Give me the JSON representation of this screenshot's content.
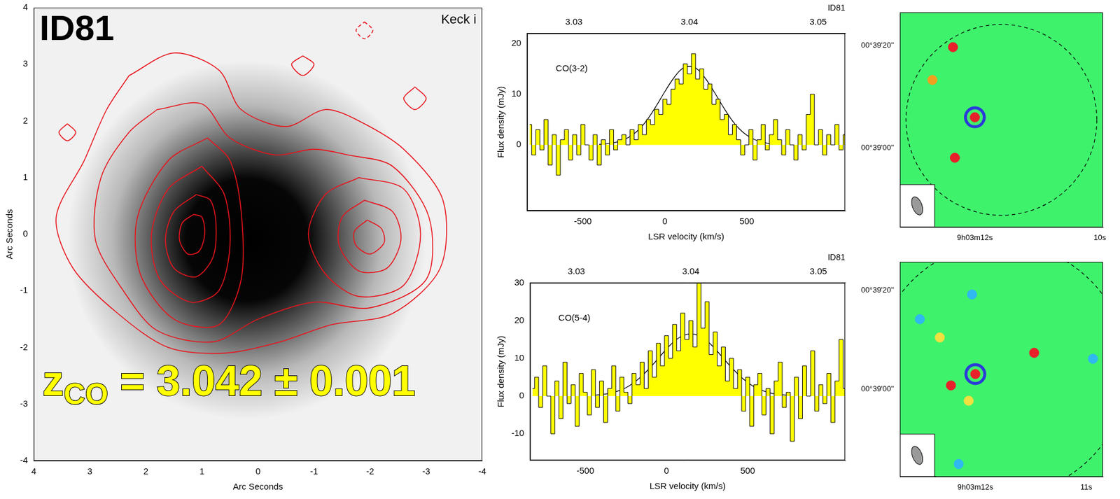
{
  "chart_data": [
    {
      "type": "contour",
      "title": "ID81",
      "subtitle": "Keck i",
      "x_label": "Arc Seconds",
      "y_label": "Arc Seconds",
      "xlim": [
        4,
        -4
      ],
      "ylim": [
        -4,
        4
      ],
      "xticks": [
        4,
        3,
        2,
        1,
        0,
        -1,
        -2,
        -3,
        -4
      ],
      "yticks": [
        -4,
        -3,
        -2,
        -1,
        0,
        1,
        2,
        3,
        4
      ],
      "grid": false,
      "image_peak": [
        0.2,
        -0.1
      ],
      "image_radius": 3.2,
      "annotation": {
        "text": "z",
        "subscript": "CO",
        "after": " = 3.042 ± 0.001"
      },
      "series": [
        {
          "type": "line",
          "color": "#e8141c",
          "line_style": "solid",
          "x": [
            1.15,
            1.35,
            1.4,
            1.25,
            1.05,
            0.95,
            1.0,
            1.15
          ],
          "y": [
            0.35,
            0.2,
            -0.1,
            -0.35,
            -0.3,
            0,
            0.3,
            0.35
          ]
        },
        {
          "type": "line",
          "color": "#e8141c",
          "line_style": "solid",
          "x": [
            1.1,
            1.5,
            1.65,
            1.5,
            1.1,
            0.8,
            0.75,
            0.85,
            1.1
          ],
          "y": [
            0.7,
            0.4,
            -0.1,
            -0.6,
            -0.75,
            -0.4,
            0.2,
            0.6,
            0.7
          ]
        },
        {
          "type": "line",
          "color": "#e8141c",
          "line_style": "solid",
          "x": [
            1.0,
            1.6,
            1.9,
            1.75,
            1.2,
            0.7,
            0.5,
            0.6,
            1.0
          ],
          "y": [
            1.2,
            0.8,
            0.0,
            -0.8,
            -1.2,
            -1.0,
            -0.2,
            0.7,
            1.2
          ]
        },
        {
          "type": "line",
          "color": "#e8141c",
          "line_style": "solid",
          "x": [
            0.9,
            1.6,
            2.15,
            2.1,
            1.5,
            0.7,
            0.3,
            0.3,
            0.5,
            0.9
          ],
          "y": [
            1.7,
            1.3,
            0.3,
            -0.7,
            -1.5,
            -1.6,
            -0.8,
            0.4,
            1.3,
            1.7
          ]
        },
        {
          "type": "line",
          "color": "#e8141c",
          "line_style": "solid",
          "x": [
            -1.95,
            -2.2,
            -2.25,
            -2.0,
            -1.75,
            -1.72,
            -1.95
          ],
          "y": [
            0.25,
            0.1,
            -0.15,
            -0.35,
            -0.2,
            0.05,
            0.25
          ]
        },
        {
          "type": "line",
          "color": "#e8141c",
          "line_style": "solid",
          "x": [
            -1.9,
            -2.4,
            -2.55,
            -2.3,
            -1.8,
            -1.45,
            -1.5,
            -1.9
          ],
          "y": [
            0.6,
            0.4,
            -0.1,
            -0.6,
            -0.65,
            -0.2,
            0.3,
            0.6
          ]
        },
        {
          "type": "line",
          "color": "#e8141c",
          "line_style": "solid",
          "x": [
            -1.8,
            -2.6,
            -2.9,
            -2.6,
            -1.8,
            -1.2,
            -0.9,
            -1.2,
            -1.8
          ],
          "y": [
            1.0,
            0.8,
            0.0,
            -0.9,
            -1.1,
            -0.7,
            0.0,
            0.7,
            1.0
          ]
        },
        {
          "type": "line",
          "color": "#e8141c",
          "line_style": "solid",
          "x": [
            1.8,
            1.0,
            0.5,
            -0.3,
            -1.0,
            -1.6,
            -2.4,
            -3.05,
            -3.0,
            -2.0,
            -1.0,
            0.0,
            0.8,
            1.8,
            2.4,
            2.9,
            2.8,
            2.3,
            1.8
          ],
          "y": [
            2.2,
            2.3,
            1.7,
            1.4,
            1.5,
            1.4,
            1.2,
            0.3,
            -0.8,
            -1.3,
            -1.2,
            -1.5,
            -1.9,
            -1.7,
            -1.0,
            -0.1,
            1.0,
            1.8,
            2.2
          ]
        },
        {
          "type": "line",
          "color": "#e8141c",
          "line_style": "solid",
          "x": [
            2.3,
            1.5,
            0.7,
            0.3,
            -0.5,
            -1.2,
            -1.8,
            -2.6,
            -3.3,
            -3.25,
            -2.4,
            -1.3,
            -0.4,
            0.6,
            1.6,
            2.5,
            3.3,
            3.6,
            3.1,
            2.7,
            2.3
          ],
          "y": [
            2.8,
            3.2,
            2.9,
            2.2,
            1.9,
            2.2,
            2.0,
            1.5,
            0.6,
            -0.6,
            -1.4,
            -1.6,
            -1.9,
            -2.1,
            -2.0,
            -1.4,
            -0.6,
            0.3,
            1.3,
            2.2,
            2.8
          ]
        },
        {
          "type": "line",
          "color": "#e8141c",
          "line_style": "solid",
          "x": [
            -0.8,
            -1.0,
            -0.8,
            -0.6,
            -0.8
          ],
          "y": [
            3.15,
            3.0,
            2.8,
            3.0,
            3.15
          ]
        },
        {
          "type": "line",
          "color": "#e8141c",
          "line_style": "solid",
          "x": [
            -2.8,
            -3.0,
            -2.8,
            -2.6,
            -2.8
          ],
          "y": [
            2.6,
            2.4,
            2.2,
            2.4,
            2.6
          ]
        },
        {
          "type": "line",
          "color": "#e8141c",
          "line_style": "solid",
          "x": [
            3.4,
            3.25,
            3.4,
            3.55,
            3.4
          ],
          "y": [
            1.95,
            1.8,
            1.65,
            1.8,
            1.95
          ]
        },
        {
          "type": "line",
          "color": "#e8141c",
          "line_style": "dashed",
          "x": [
            -1.9,
            -2.05,
            -1.9,
            -1.75,
            -1.9
          ],
          "y": [
            3.75,
            3.6,
            3.45,
            3.6,
            3.75
          ]
        }
      ]
    },
    {
      "type": "line",
      "title": "ID81",
      "annotation": "CO(3-2)",
      "x_label": "LSR velocity (km/s)",
      "y_label": "Flux density (mJy)",
      "xlim": [
        -840,
        1100
      ],
      "ylim": [
        -13,
        22
      ],
      "xticks": [
        -500,
        0,
        500
      ],
      "yticks": [
        0,
        10,
        20
      ],
      "x2lim": [
        -840,
        1100
      ],
      "x2ticks": [
        {
          "value": -555,
          "label": "3.03"
        },
        {
          "value": 150,
          "label": "3.04"
        },
        {
          "value": 935,
          "label": "3.05"
        }
      ],
      "grid": false,
      "series": [
        {
          "type": "step",
          "color": "#ffff00",
          "line_style": "solid",
          "x": [
            -825,
            -800,
            -775,
            -750,
            -725,
            -700,
            -675,
            -650,
            -625,
            -600,
            -575,
            -550,
            -525,
            -500,
            -475,
            -450,
            -425,
            -400,
            -375,
            -350,
            -325,
            -300,
            -275,
            -250,
            -225,
            -200,
            -175,
            -150,
            -125,
            -100,
            -75,
            -50,
            -25,
            0,
            25,
            50,
            75,
            100,
            125,
            150,
            175,
            200,
            225,
            250,
            275,
            300,
            325,
            350,
            375,
            400,
            425,
            450,
            475,
            500,
            525,
            550,
            575,
            600,
            625,
            650,
            675,
            700,
            725,
            750,
            775,
            800,
            825,
            850,
            875,
            900,
            925,
            950,
            975,
            1000,
            1025,
            1050,
            1075,
            1100
          ],
          "values": [
            4,
            -2,
            3,
            -1,
            5,
            -4,
            2,
            -6,
            1,
            3,
            -3,
            2,
            -2,
            4,
            0,
            -3,
            2,
            -4,
            1,
            -2,
            3,
            -1,
            1,
            2,
            0,
            3,
            1,
            4,
            2,
            5,
            4,
            7,
            6,
            9,
            8,
            11,
            13,
            12,
            16,
            14,
            18,
            13,
            15,
            11,
            12,
            8,
            9,
            5,
            6,
            2,
            4,
            1,
            -2,
            0,
            3,
            -3,
            1,
            4,
            -1,
            2,
            5,
            1,
            -2,
            3,
            0,
            -3,
            2,
            -1,
            6,
            10,
            0,
            3,
            -2,
            2,
            0,
            4,
            -1,
            2
          ]
        },
        {
          "type": "line",
          "color": "#000000",
          "line_style": "solid",
          "x": [
            -400,
            -350,
            -300,
            -250,
            -200,
            -150,
            -100,
            -50,
            0,
            50,
            100,
            150,
            200,
            250,
            300,
            350,
            400,
            450,
            500,
            550,
            600,
            650,
            700
          ],
          "values": [
            0.1,
            0.2,
            0.5,
            1.0,
            1.9,
            3.3,
            5.3,
            7.8,
            10.5,
            13.0,
            14.9,
            15.5,
            14.9,
            13.0,
            10.5,
            7.8,
            5.3,
            3.3,
            1.9,
            1.0,
            0.5,
            0.2,
            0.1
          ]
        }
      ]
    },
    {
      "type": "line",
      "title": "ID81",
      "annotation": "CO(5-4)",
      "x_label": "LSR velocity (km/s)",
      "y_label": "Flux density (mJy)",
      "xlim": [
        -840,
        1100
      ],
      "ylim": [
        -17,
        30
      ],
      "xticks": [
        -500,
        0,
        500
      ],
      "yticks": [
        -10,
        0,
        10,
        20,
        30
      ],
      "x2lim": [
        -840,
        1100
      ],
      "x2ticks": [
        {
          "value": -555,
          "label": "3.03"
        },
        {
          "value": 150,
          "label": "3.04"
        },
        {
          "value": 935,
          "label": "3.05"
        }
      ],
      "grid": false,
      "series": [
        {
          "type": "step",
          "color": "#ffff00",
          "line_style": "solid",
          "x": [
            -825,
            -800,
            -775,
            -750,
            -725,
            -700,
            -675,
            -650,
            -625,
            -600,
            -575,
            -550,
            -525,
            -500,
            -475,
            -450,
            -425,
            -400,
            -375,
            -350,
            -325,
            -300,
            -275,
            -250,
            -225,
            -200,
            -175,
            -150,
            -125,
            -100,
            -75,
            -50,
            -25,
            0,
            25,
            50,
            75,
            100,
            125,
            150,
            175,
            200,
            225,
            250,
            275,
            300,
            325,
            350,
            375,
            400,
            425,
            450,
            475,
            500,
            525,
            550,
            575,
            600,
            625,
            650,
            675,
            700,
            725,
            750,
            775,
            800,
            825,
            850,
            875,
            900,
            925,
            950,
            975,
            1000,
            1025,
            1050,
            1075,
            1100
          ],
          "values": [
            2,
            5,
            -3,
            8,
            0,
            -10,
            4,
            -6,
            9,
            -2,
            3,
            -8,
            6,
            1,
            -5,
            7,
            -3,
            4,
            -7,
            2,
            8,
            -4,
            5,
            1,
            -2,
            6,
            3,
            9,
            2,
            12,
            5,
            14,
            8,
            16,
            10,
            19,
            12,
            22,
            15,
            20,
            13,
            30,
            18,
            25,
            11,
            17,
            8,
            13,
            4,
            10,
            2,
            7,
            -4,
            5,
            -8,
            3,
            6,
            -5,
            2,
            -10,
            4,
            9,
            -3,
            1,
            -12,
            5,
            -6,
            8,
            0,
            12,
            -4,
            3,
            -2,
            6,
            -7,
            4,
            15,
            2
          ]
        },
        {
          "type": "line",
          "color": "#000000",
          "line_style": "solid",
          "x": [
            -450,
            -400,
            -350,
            -300,
            -250,
            -200,
            -150,
            -100,
            -50,
            0,
            50,
            100,
            150,
            200,
            250,
            300,
            350,
            400,
            450,
            500,
            550,
            600,
            650,
            700,
            750
          ],
          "values": [
            0.2,
            0.4,
            0.7,
            1.3,
            2.2,
            3.6,
            5.4,
            7.6,
            10.0,
            12.5,
            14.6,
            16.0,
            16.5,
            16.0,
            14.6,
            12.5,
            10.0,
            7.6,
            5.4,
            3.6,
            2.2,
            1.3,
            0.7,
            0.4,
            0.2
          ]
        }
      ]
    },
    {
      "type": "scatter",
      "xlim": [
        13.2,
        9.95
      ],
      "ylim": [
        -15.5,
        26.5
      ],
      "xticks": [
        {
          "value": 12,
          "label": "9h03m12s"
        },
        {
          "value": 10,
          "label": "10s"
        }
      ],
      "yticks": [
        {
          "value": 0,
          "label": "00°39'00''"
        },
        {
          "value": 20,
          "label": "00°39'20''"
        }
      ],
      "grid": false,
      "series": [
        {
          "color": "#2b3bd8",
          "marker": "ring",
          "x": [
            12.0
          ],
          "y": [
            6.0
          ]
        },
        {
          "color": "#e8202a",
          "marker": "circle",
          "x": [
            12.0,
            12.35,
            12.32
          ],
          "y": [
            6.0,
            19.7,
            -1.9
          ]
        },
        {
          "color": "#f0a020",
          "marker": "circle",
          "x": [
            12.68
          ],
          "y": [
            13.3
          ]
        }
      ]
    },
    {
      "type": "scatter",
      "xlim": [
        12.68,
        10.85
      ],
      "ylim": [
        -17.7,
        25.8
      ],
      "xticks": [
        {
          "value": 12,
          "label": "9h03m12s"
        },
        {
          "value": 11,
          "label": "11s"
        }
      ],
      "yticks": [
        {
          "value": 0,
          "label": "00°39'00''"
        },
        {
          "value": 20,
          "label": "00°39'20''"
        }
      ],
      "grid": false,
      "series": [
        {
          "color": "#2b3bd8",
          "marker": "ring",
          "x": [
            12.0
          ],
          "y": [
            3.1
          ]
        },
        {
          "color": "#e8202a",
          "marker": "circle",
          "x": [
            12.0,
            11.47,
            12.22
          ],
          "y": [
            3.1,
            7.4,
            0.8
          ]
        },
        {
          "color": "#f0e040",
          "marker": "circle",
          "x": [
            12.32,
            12.06
          ],
          "y": [
            10.5,
            -2.3
          ]
        },
        {
          "color": "#30b8f0",
          "marker": "circle",
          "x": [
            12.03,
            12.15,
            10.94,
            12.5
          ],
          "y": [
            19.2,
            -15.1,
            6.2,
            14.2
          ]
        }
      ]
    }
  ]
}
